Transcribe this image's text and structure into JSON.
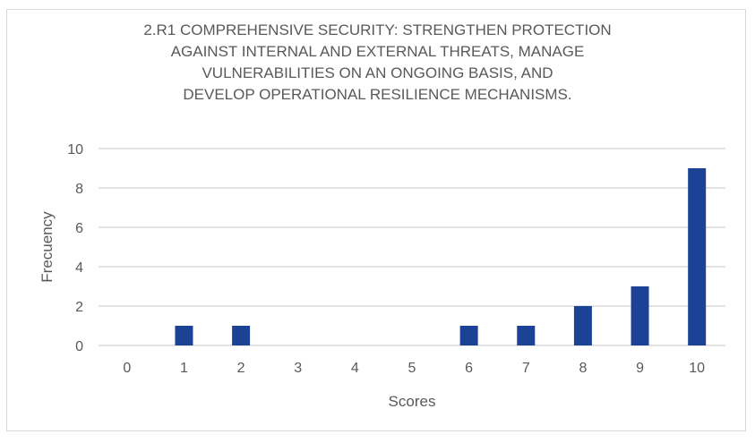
{
  "chart_data": {
    "type": "bar",
    "title_lines": [
      "2.R1 COMPREHENSIVE SECURITY: STRENGTHEN PROTECTION",
      "AGAINST INTERNAL AND EXTERNAL THREATS, MANAGE",
      "VULNERABILITIES ON AN ONGOING BASIS, AND",
      "DEVELOP OPERATIONAL RESILIENCE MECHANISMS."
    ],
    "categories": [
      "0",
      "1",
      "2",
      "3",
      "4",
      "5",
      "6",
      "7",
      "8",
      "9",
      "10"
    ],
    "values": [
      0,
      1,
      1,
      0,
      0,
      0,
      1,
      1,
      2,
      3,
      9
    ],
    "xlabel": "Scores",
    "ylabel": "Frecuency",
    "ylim": [
      0,
      10
    ],
    "yticks": [
      0,
      2,
      4,
      6,
      8,
      10
    ],
    "grid": true,
    "bar_color": "#1c4295",
    "grid_color": "#d9d9d9"
  }
}
